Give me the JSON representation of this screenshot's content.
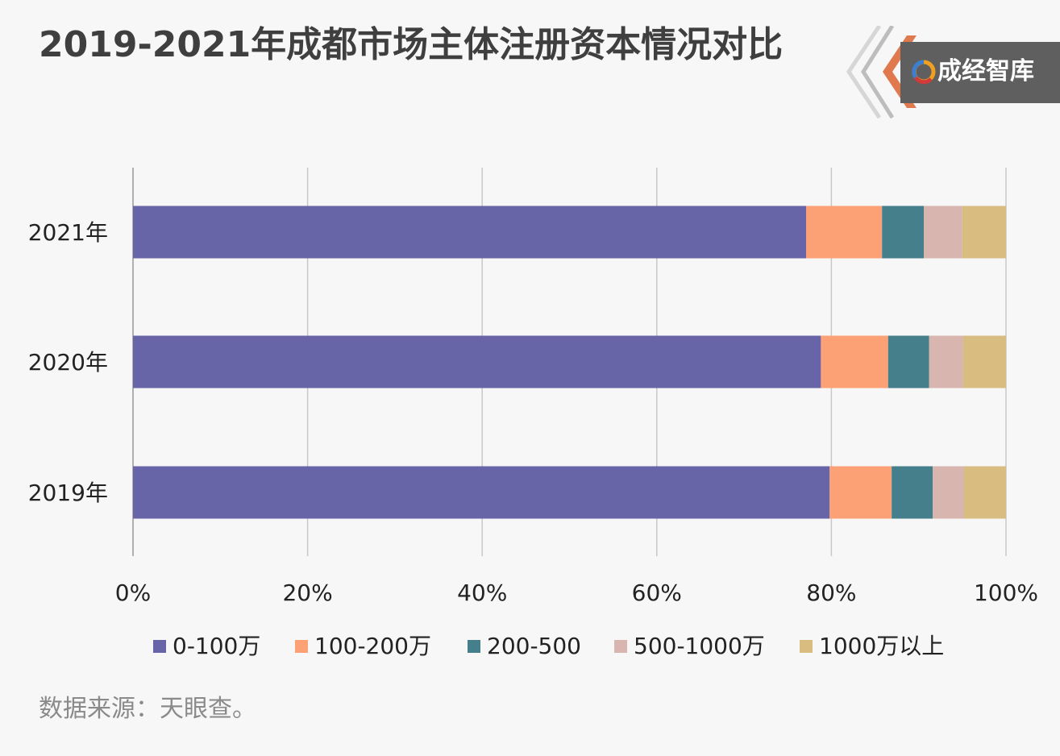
{
  "title": "2019-2021年成都市场主体注册资本情况对比",
  "logo": {
    "text": "成经智库"
  },
  "source": "数据来源：天眼查。",
  "colors": {
    "series": [
      "#6764a8",
      "#fca176",
      "#467f8c",
      "#d8b5ae",
      "#d9bc80"
    ],
    "grid": "#c8c8c8",
    "axis": "#999999",
    "logo_accent": "#e07a4e"
  },
  "chart_data": {
    "type": "bar",
    "orientation": "horizontal",
    "stacked": "percent",
    "categories": [
      "2021年",
      "2020年",
      "2019年"
    ],
    "series": [
      {
        "name": "0-100万",
        "values": [
          77.1,
          78.8,
          79.8
        ]
      },
      {
        "name": "100-200万",
        "values": [
          8.7,
          7.7,
          7.1
        ]
      },
      {
        "name": "200-500",
        "values": [
          4.8,
          4.7,
          4.7
        ]
      },
      {
        "name": "500-1000万",
        "values": [
          4.4,
          3.9,
          3.6
        ]
      },
      {
        "name": "1000万以上",
        "values": [
          5.0,
          4.9,
          4.8
        ]
      }
    ],
    "xlim": [
      0,
      100
    ],
    "xticks": [
      "0%",
      "20%",
      "40%",
      "60%",
      "80%",
      "100%"
    ],
    "grid": true,
    "legend_position": "bottom"
  }
}
